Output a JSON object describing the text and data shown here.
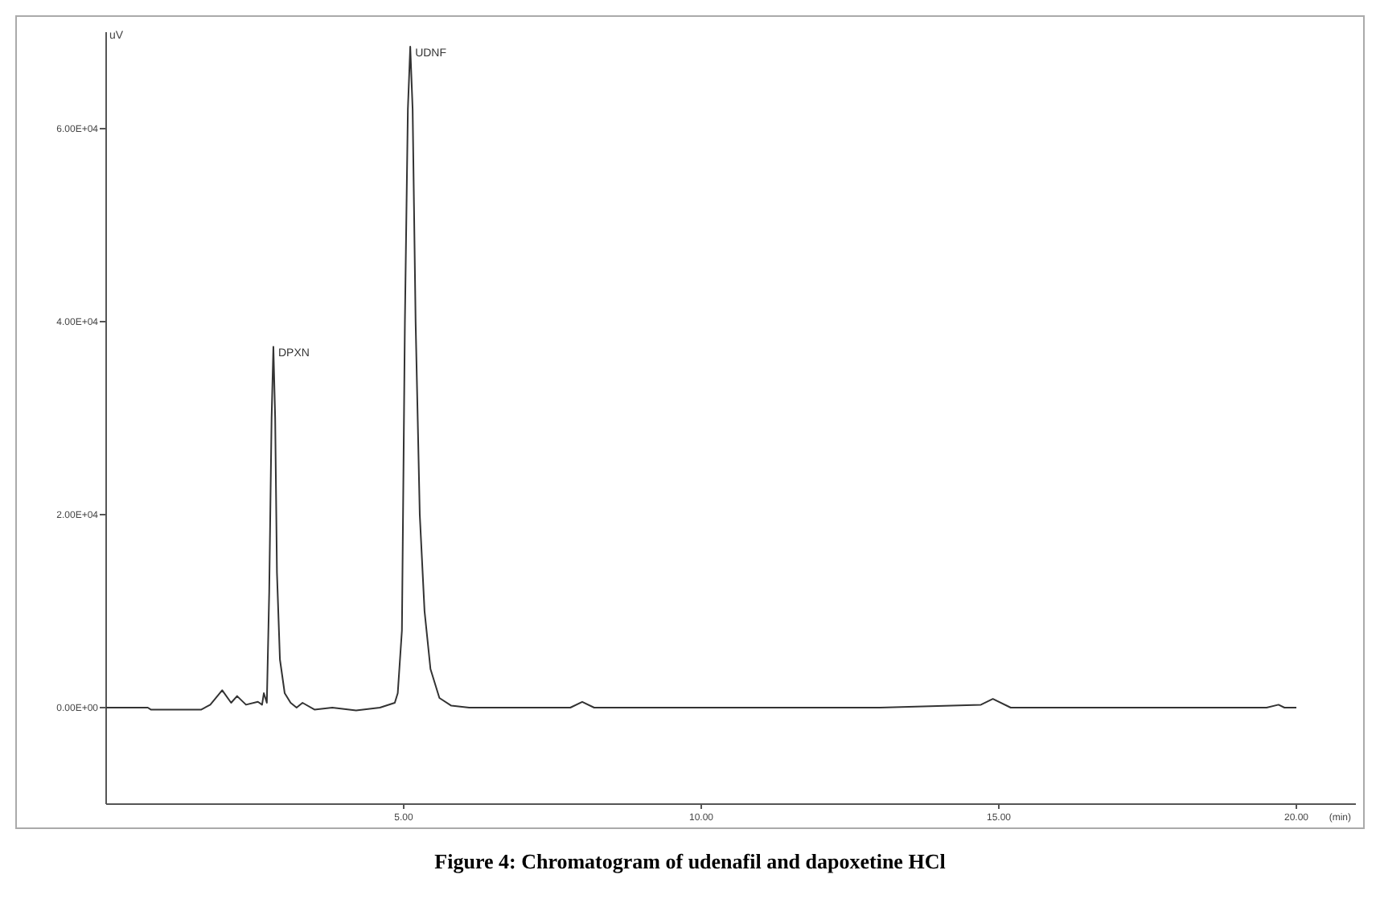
{
  "chart_data": {
    "type": "line",
    "title": "Figure 4: Chromatogram of udenafil and dapoxetine HCl",
    "xlabel": "(min)",
    "ylabel": "uV",
    "xlim": [
      0,
      21
    ],
    "xticks": [
      {
        "value": 5,
        "label": "5.00"
      },
      {
        "value": 10,
        "label": "10.00"
      },
      {
        "value": 15,
        "label": "15.00"
      },
      {
        "value": 20,
        "label": "20.00"
      }
    ],
    "ylim": [
      -10000,
      70000
    ],
    "yticks": [
      {
        "value": 0,
        "label": "0.00E+00"
      },
      {
        "value": 20000,
        "label": "2.00E+04"
      },
      {
        "value": 40000,
        "label": "4.00E+04"
      },
      {
        "value": 60000,
        "label": "6.00E+04"
      }
    ],
    "marker": "none",
    "line_style": "solid",
    "annotations": [
      {
        "text": "DPXN",
        "x": 2.81,
        "y": 37400
      },
      {
        "text": "UDNF",
        "x": 5.11,
        "y": 68500
      }
    ],
    "series": [
      {
        "color": "#333333",
        "x": [
          0,
          0.7,
          0.75,
          1.6,
          1.75,
          1.95,
          2.1,
          2.2,
          2.35,
          2.55,
          2.62,
          2.65,
          2.7,
          2.74,
          2.78,
          2.81,
          2.84,
          2.87,
          2.92,
          3.0,
          3.1,
          3.2,
          3.3,
          3.5,
          3.8,
          4.2,
          4.6,
          4.85,
          4.9,
          4.97,
          5.02,
          5.07,
          5.11,
          5.15,
          5.2,
          5.27,
          5.35,
          5.45,
          5.6,
          5.8,
          6.1,
          7.8,
          8.0,
          8.2,
          13.0,
          14.7,
          14.9,
          15.2,
          19.5,
          19.7,
          19.8,
          20.0
        ],
        "values": [
          0,
          0,
          -200,
          -200,
          300,
          1800,
          500,
          1200,
          300,
          600,
          300,
          1500,
          500,
          12000,
          30000,
          37400,
          30000,
          14000,
          5000,
          1500,
          500,
          0,
          500,
          -200,
          0,
          -300,
          0,
          500,
          1500,
          8000,
          40000,
          62000,
          68500,
          62000,
          40000,
          20000,
          10000,
          4000,
          1000,
          200,
          0,
          0,
          600,
          0,
          0,
          300,
          900,
          0,
          0,
          300,
          0,
          0
        ]
      }
    ]
  }
}
